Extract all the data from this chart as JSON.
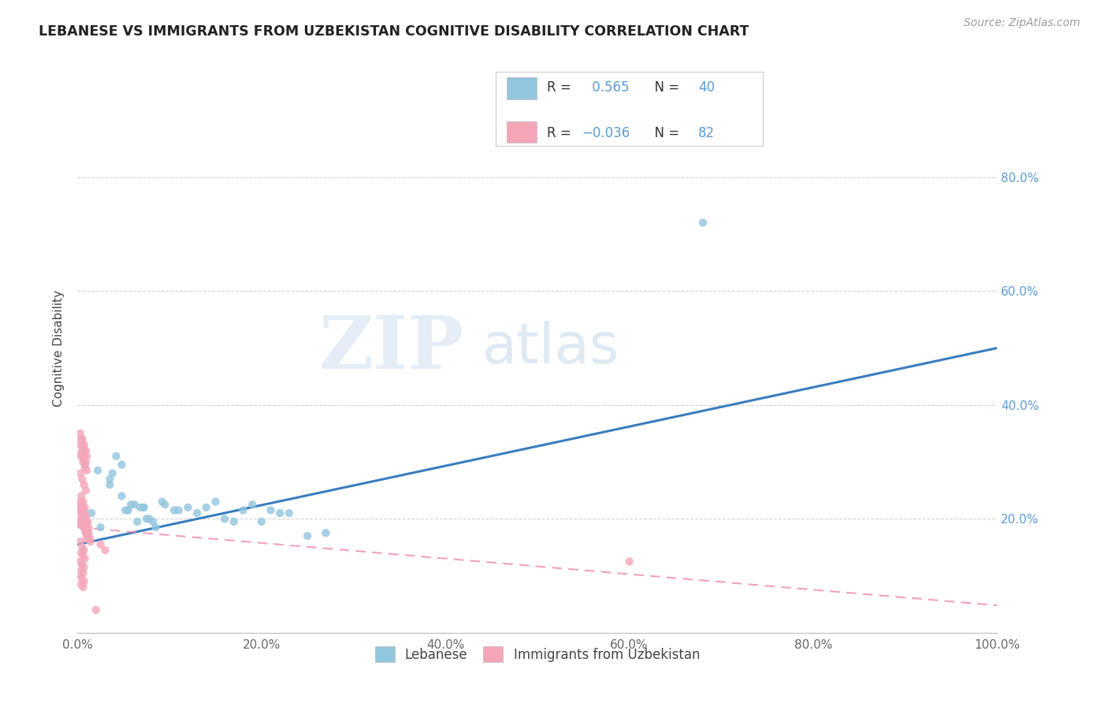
{
  "title": "LEBANESE VS IMMIGRANTS FROM UZBEKISTAN COGNITIVE DISABILITY CORRELATION CHART",
  "source": "Source: ZipAtlas.com",
  "ylabel": "Cognitive Disability",
  "xlim": [
    0,
    1.0
  ],
  "ylim": [
    0,
    1.0
  ],
  "xtick_vals": [
    0.0,
    0.2,
    0.4,
    0.6,
    0.8,
    1.0
  ],
  "xtick_labels": [
    "0.0%",
    "20.0%",
    "40.0%",
    "60.0%",
    "80.0%",
    "100.0%"
  ],
  "ytick_vals": [
    0.2,
    0.4,
    0.6,
    0.8
  ],
  "ytick_labels_right": [
    "20.0%",
    "40.0%",
    "60.0%",
    "80.0%"
  ],
  "blue_color": "#92c5de",
  "pink_color": "#f4a6b8",
  "blue_line_color": "#3a7dbf",
  "pink_line_color": "#f080a0",
  "watermark_zip": "ZIP",
  "watermark_atlas": "atlas",
  "blue_line_x": [
    0.0,
    1.0
  ],
  "blue_line_y": [
    0.155,
    0.5
  ],
  "pink_line_x": [
    0.0,
    1.0
  ],
  "pink_line_y": [
    0.185,
    0.048
  ],
  "blue_scatter_x": [
    0.015,
    0.022,
    0.035,
    0.048,
    0.055,
    0.065,
    0.075,
    0.085,
    0.095,
    0.105,
    0.035,
    0.052,
    0.068,
    0.082,
    0.048,
    0.072,
    0.092,
    0.038,
    0.058,
    0.078,
    0.042,
    0.062,
    0.025,
    0.11,
    0.13,
    0.15,
    0.17,
    0.19,
    0.21,
    0.23,
    0.25,
    0.27,
    0.12,
    0.14,
    0.16,
    0.18,
    0.2,
    0.22,
    0.072,
    0.68
  ],
  "blue_scatter_y": [
    0.21,
    0.285,
    0.26,
    0.24,
    0.215,
    0.195,
    0.2,
    0.185,
    0.225,
    0.215,
    0.27,
    0.215,
    0.22,
    0.195,
    0.295,
    0.22,
    0.23,
    0.28,
    0.225,
    0.2,
    0.31,
    0.225,
    0.185,
    0.215,
    0.21,
    0.23,
    0.195,
    0.225,
    0.215,
    0.21,
    0.17,
    0.175,
    0.22,
    0.22,
    0.2,
    0.215,
    0.195,
    0.21,
    0.22,
    0.72
  ],
  "pink_scatter_x": [
    0.003,
    0.005,
    0.007,
    0.009,
    0.011,
    0.013,
    0.004,
    0.006,
    0.008,
    0.01,
    0.012,
    0.014,
    0.003,
    0.005,
    0.007,
    0.009,
    0.011,
    0.013,
    0.004,
    0.006,
    0.008,
    0.01,
    0.012,
    0.003,
    0.005,
    0.007,
    0.009,
    0.011,
    0.004,
    0.006,
    0.008,
    0.01,
    0.012,
    0.003,
    0.005,
    0.007,
    0.009,
    0.011,
    0.004,
    0.006,
    0.008,
    0.01,
    0.003,
    0.005,
    0.007,
    0.009,
    0.004,
    0.006,
    0.008,
    0.01,
    0.003,
    0.005,
    0.007,
    0.009,
    0.004,
    0.006,
    0.008,
    0.003,
    0.005,
    0.007,
    0.009,
    0.004,
    0.006,
    0.008,
    0.003,
    0.005,
    0.007,
    0.004,
    0.006,
    0.008,
    0.003,
    0.005,
    0.007,
    0.004,
    0.006,
    0.003,
    0.005,
    0.007,
    0.004,
    0.006,
    0.6,
    0.025,
    0.03,
    0.02
  ],
  "pink_scatter_y": [
    0.19,
    0.2,
    0.185,
    0.175,
    0.17,
    0.165,
    0.21,
    0.195,
    0.18,
    0.165,
    0.175,
    0.16,
    0.2,
    0.19,
    0.185,
    0.175,
    0.17,
    0.165,
    0.215,
    0.205,
    0.195,
    0.18,
    0.17,
    0.22,
    0.21,
    0.2,
    0.19,
    0.18,
    0.225,
    0.215,
    0.205,
    0.195,
    0.185,
    0.23,
    0.22,
    0.215,
    0.205,
    0.195,
    0.315,
    0.305,
    0.295,
    0.285,
    0.33,
    0.32,
    0.31,
    0.3,
    0.34,
    0.33,
    0.32,
    0.31,
    0.35,
    0.34,
    0.33,
    0.32,
    0.31,
    0.3,
    0.29,
    0.28,
    0.27,
    0.26,
    0.25,
    0.24,
    0.23,
    0.22,
    0.16,
    0.15,
    0.145,
    0.14,
    0.135,
    0.13,
    0.125,
    0.12,
    0.115,
    0.11,
    0.105,
    0.1,
    0.095,
    0.09,
    0.085,
    0.08,
    0.125,
    0.155,
    0.145,
    0.04
  ]
}
